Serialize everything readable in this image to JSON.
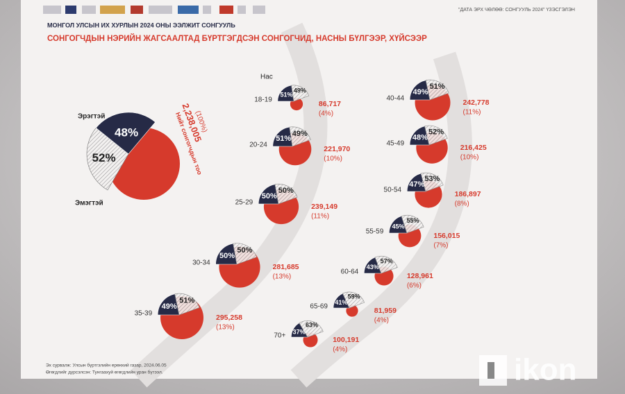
{
  "header": {
    "title": "МОНГОЛ УЛСЫН ИХ ХУРЛЫН 2024 ОНЫ ЭЭЛЖИТ СОНГУУЛЬ",
    "subtitle": "СОНГОГЧДЫН НЭРИЙН ЖАГСААЛТАД БҮРТГЭГДСЭН СОНГОГЧИД, НАСНЫ БҮЛГЭЭР, ХҮЙСЭЭР",
    "tag": "\"ДАТА ЭРХ ЧӨЛӨӨ: СОНГУУЛЬ 2024\" ҮЗЭСГЭЛЭН"
  },
  "chart_data": {
    "type": "pie",
    "category_axis_label": "Нас",
    "categories": [
      "18-19",
      "20-24",
      "25-29",
      "30-34",
      "35-39",
      "40-44",
      "45-49",
      "50-54",
      "55-59",
      "60-64",
      "65-69",
      "70+"
    ],
    "series": [
      {
        "name": "Эрэгтэй",
        "color": "#262a46",
        "values": [
          51,
          51,
          50,
          50,
          49,
          49,
          48,
          47,
          45,
          43,
          41,
          37
        ],
        "value_labels": [
          "51%",
          "51%",
          "50%",
          "50%",
          "49%",
          "49%",
          "48%",
          "47%",
          "45%",
          "43%",
          "41%",
          "37%"
        ]
      },
      {
        "name": "Эмэгтэй",
        "color": "#ebe7e5",
        "values": [
          49,
          49,
          50,
          50,
          51,
          51,
          52,
          53,
          55,
          57,
          59,
          63
        ],
        "value_labels": [
          "49%",
          "49%",
          "50%",
          "50%",
          "51%",
          "51%",
          "52%",
          "53%",
          "55%",
          "57%",
          "59%",
          "63%"
        ]
      }
    ],
    "counts": {
      "color": "#d63a2c",
      "values": [
        86717,
        221970,
        239149,
        281685,
        295258,
        242778,
        216425,
        186897,
        156015,
        128961,
        81959,
        100191
      ],
      "value_labels": [
        "86,717",
        "221,970",
        "239,149",
        "281,685",
        "295,258",
        "242,778",
        "216,425",
        "186,897",
        "156,015",
        "128,961",
        "81,959",
        "100,191"
      ]
    },
    "shares": {
      "values": [
        4,
        10,
        11,
        13,
        13,
        11,
        10,
        8,
        7,
        6,
        4,
        4
      ],
      "value_labels": [
        "(4%)",
        "(10%)",
        "(11%)",
        "(13%)",
        "(13%)",
        "(11%)",
        "(10%)",
        "(8%)",
        "(7%)",
        "(6%)",
        "(4%)",
        "(4%)"
      ]
    },
    "total": {
      "label": "Нийт сонгогчдын тоо",
      "value": 2238005,
      "value_label": "2,238,005",
      "share": 100,
      "share_label": "(100%)",
      "male": 48,
      "male_label": "48%",
      "female": 52,
      "female_label": "52%"
    }
  },
  "footer": {
    "source": "Эх сурвалж: Улсын бүртгэлийн ерөнхий газар, 2024.06.05",
    "credit": "Өгөгдлийг дүрсэлсэн: Тунгаахуй өгөгдлийн уран бүтээл."
  },
  "watermark": "ikon"
}
